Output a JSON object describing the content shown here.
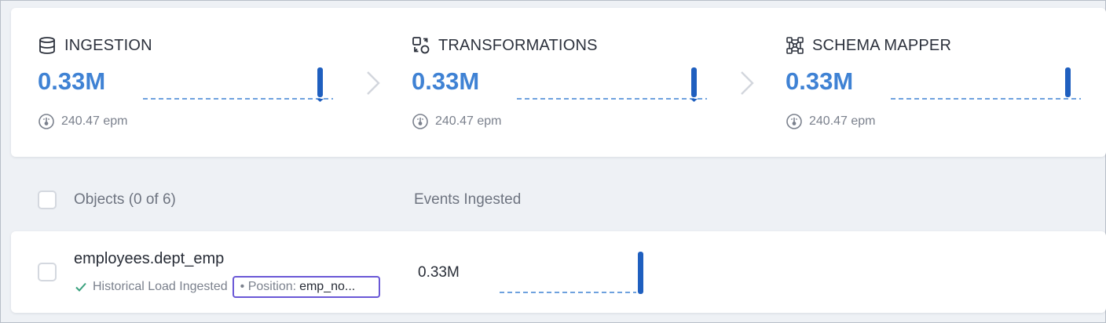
{
  "stages": [
    {
      "title": "INGESTION",
      "icon": "database-icon",
      "count": "0.33M",
      "rate": "240.47 epm"
    },
    {
      "title": "TRANSFORMATIONS",
      "icon": "transform-icon",
      "count": "0.33M",
      "rate": "240.47 epm"
    },
    {
      "title": "SCHEMA MAPPER",
      "icon": "schema-mapper-icon",
      "count": "0.33M",
      "rate": "240.47 epm"
    }
  ],
  "table": {
    "objects_header": "Objects (0 of 6)",
    "events_header": "Events Ingested",
    "rows": [
      {
        "name": "employees.dept_emp",
        "status": "Historical Load Ingested",
        "position_label": "• Position:",
        "position_value": "emp_no...",
        "events": "0.33M"
      }
    ]
  },
  "colors": {
    "accent": "#3f82d4",
    "spark_bar": "#1f5fbf",
    "success": "#3aa17e",
    "highlight": "#6a58d6"
  }
}
